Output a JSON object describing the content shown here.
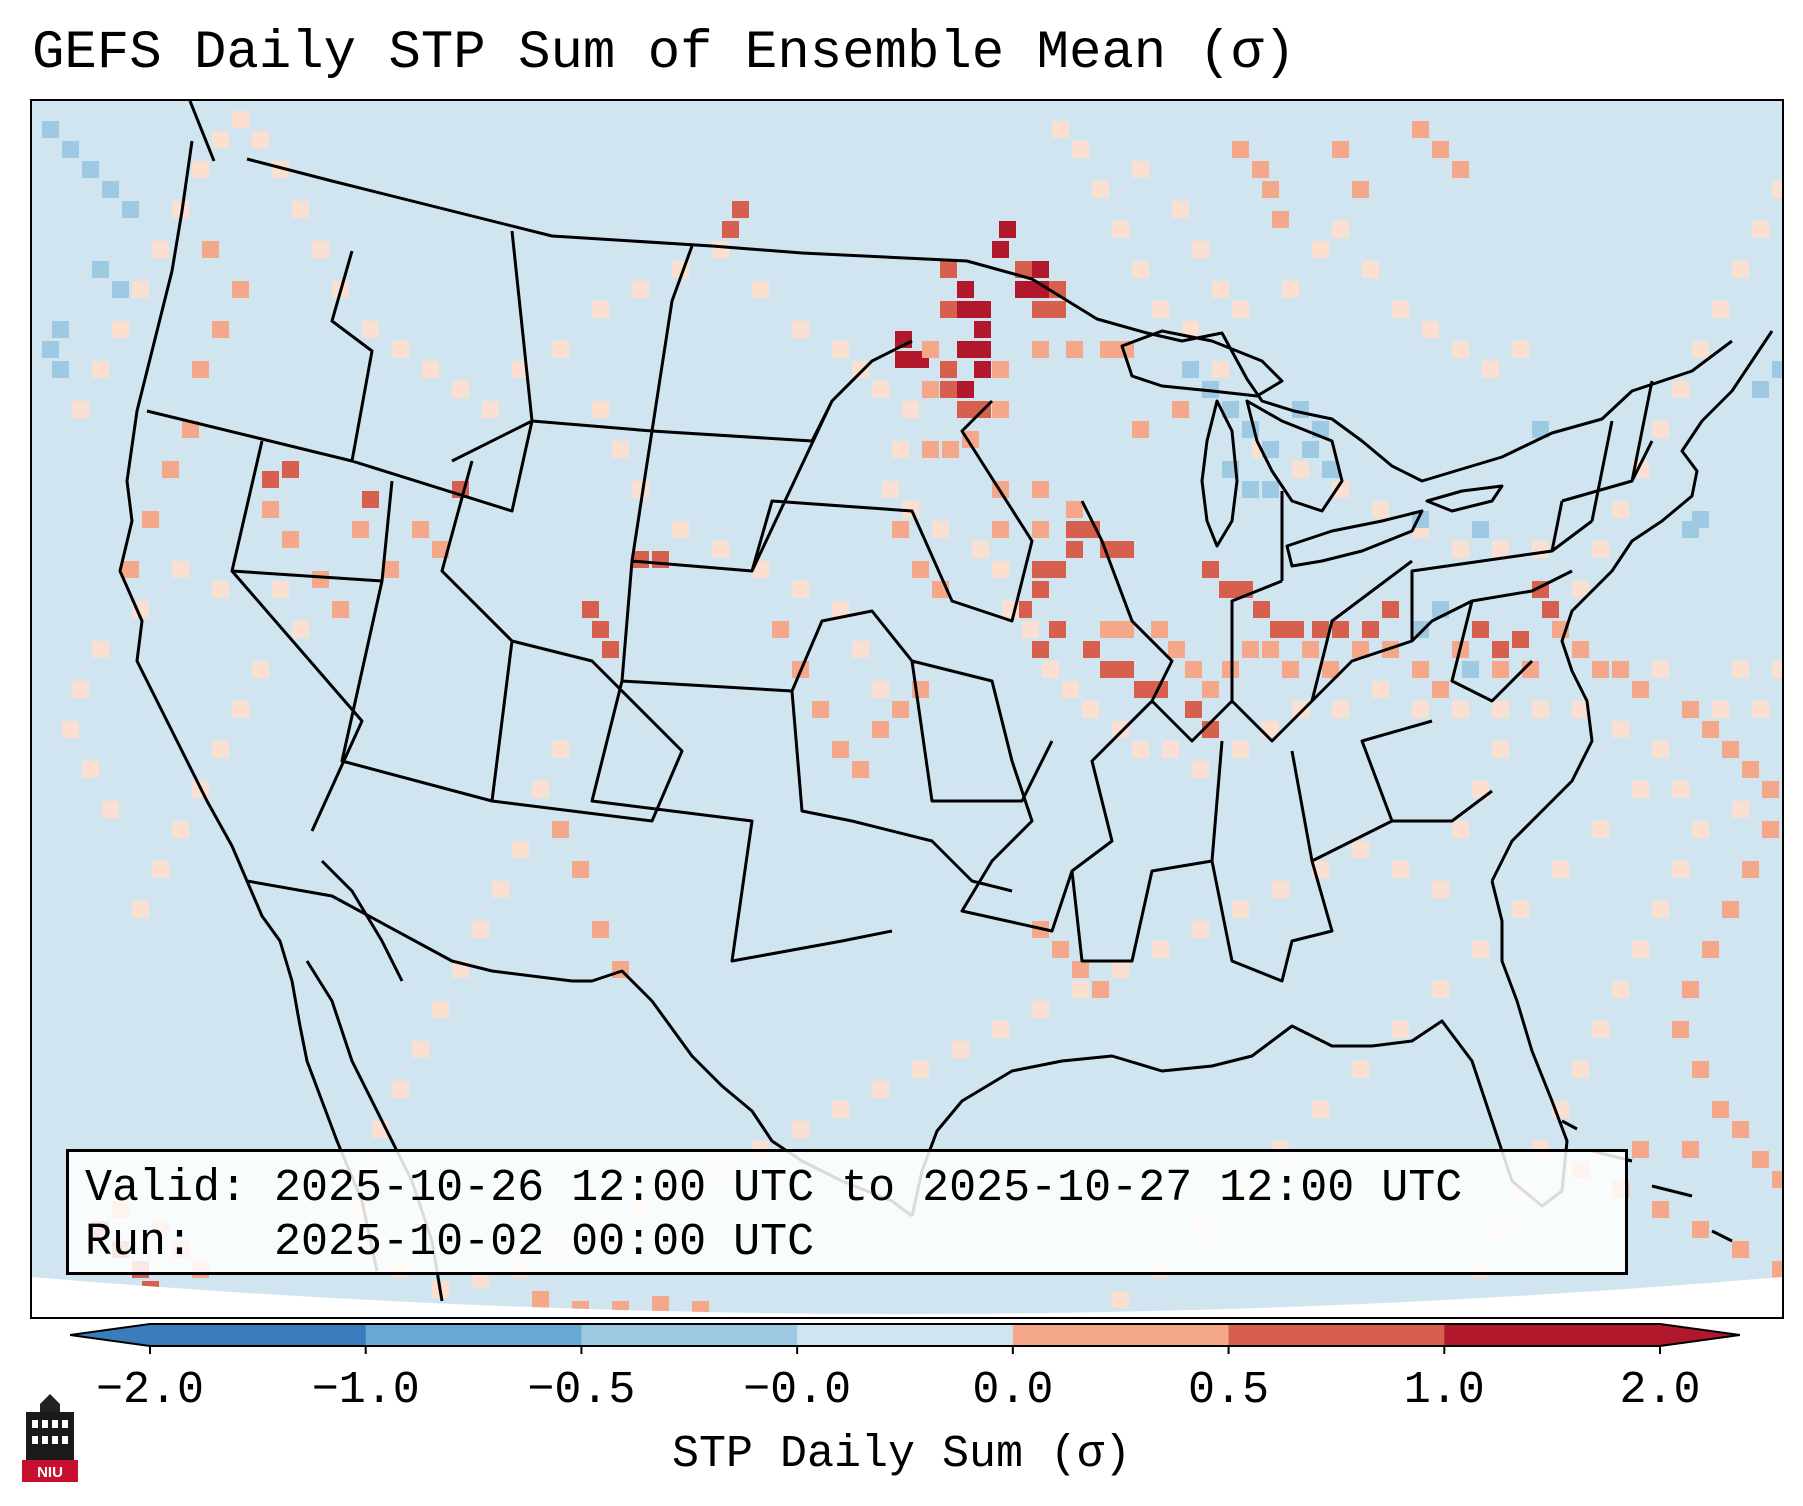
{
  "title": "GEFS Daily STP Sum of Ensemble Mean (σ)",
  "info": {
    "valid_label": "Valid:",
    "valid_value": "2025-10-26 12:00 UTC to 2025-10-27 12:00 UTC",
    "run_label": "Run:",
    "run_value": "2025-10-02 00:00 UTC"
  },
  "colorbar": {
    "label": "STP Daily Sum (σ)",
    "ticks": [
      "−2.0",
      "−1.0",
      "−0.5",
      "−0.0",
      "0.0",
      "0.5",
      "1.0",
      "2.0"
    ],
    "colors": [
      "#3a7dbc",
      "#6aa9d6",
      "#9dc9e2",
      "#d1e5f0",
      "#fbdfd0",
      "#f4a889",
      "#d6604d",
      "#b2182b"
    ],
    "extend": "both"
  },
  "logo": {
    "text": "NIU"
  },
  "map_colors": {
    "background": "#d1e5f0",
    "outside": "#ffffff",
    "low": "#fbdfd0",
    "mid": "#f4a889",
    "high": "#d6604d",
    "max": "#b2182b",
    "neg": "#9dc9e2",
    "boundaries": "#000000"
  }
}
